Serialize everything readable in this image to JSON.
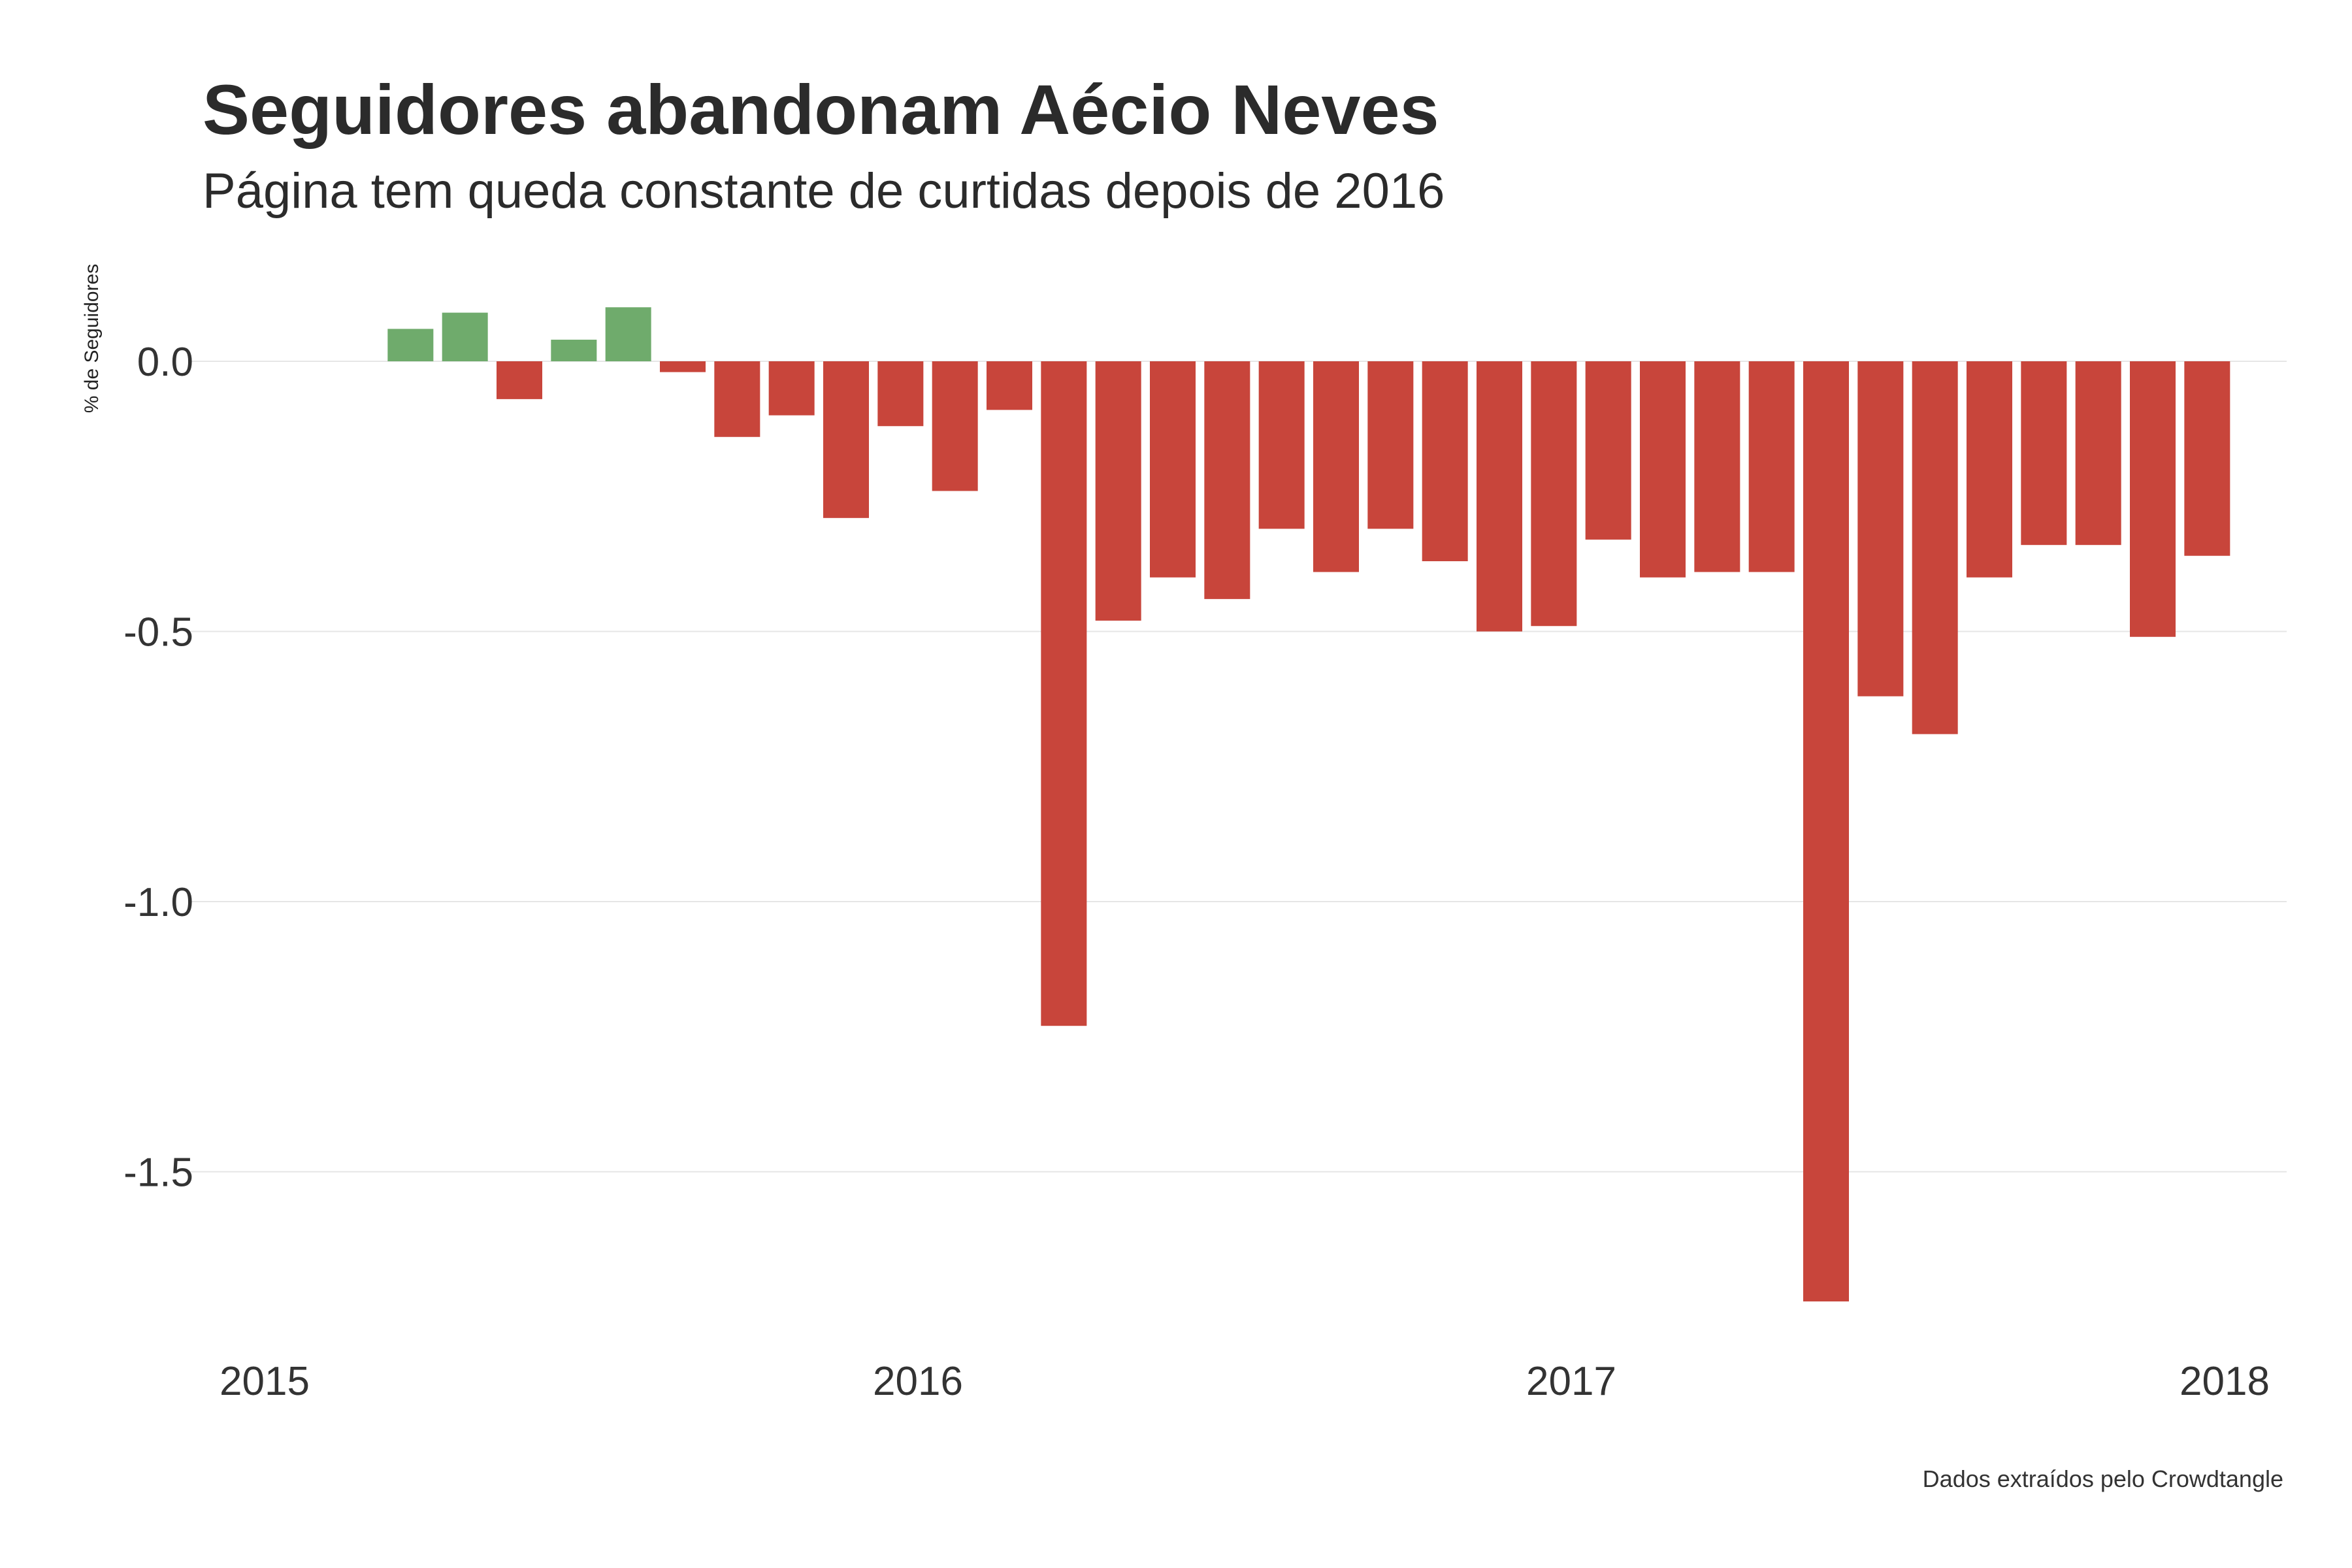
{
  "chart_data": {
    "type": "bar",
    "title": "Seguidores abandonam Aécio Neves",
    "subtitle": "Página tem queda constante de curtidas depois de 2016",
    "ylabel": "% de Seguidores",
    "xlabel": "",
    "caption": "Dados extraídos pelo Crowdtangle",
    "ylim": [
      -1.75,
      0.1
    ],
    "yticks": [
      0.0,
      -0.5,
      -1.0,
      -1.5
    ],
    "ytick_labels": [
      "0.0",
      "-0.5",
      "-1.0",
      "-1.5"
    ],
    "xticks": [
      "2015",
      "2016",
      "2017",
      "2018"
    ],
    "grid": true,
    "legend": "none",
    "colors": {
      "positive": "#6fab6c",
      "negative": "#c8453b"
    },
    "categories": [
      "2015-03",
      "2015-04",
      "2015-05",
      "2015-06",
      "2015-07",
      "2015-08",
      "2015-09",
      "2015-10",
      "2015-11",
      "2015-12",
      "2016-01",
      "2016-02",
      "2016-03",
      "2016-04",
      "2016-05",
      "2016-06",
      "2016-07",
      "2016-08",
      "2016-09",
      "2016-10",
      "2016-11",
      "2016-12",
      "2017-01",
      "2017-02",
      "2017-03",
      "2017-04",
      "2017-05",
      "2017-06",
      "2017-07",
      "2017-08",
      "2017-09",
      "2017-10",
      "2017-11",
      "2017-12"
    ],
    "values": [
      0.06,
      0.09,
      -0.07,
      0.04,
      0.1,
      -0.02,
      -0.14,
      -0.1,
      -0.29,
      -0.12,
      -0.24,
      -0.09,
      -1.23,
      -0.48,
      -0.4,
      -0.44,
      -0.31,
      -0.39,
      -0.31,
      -0.37,
      -0.5,
      -0.49,
      -0.33,
      -0.4,
      -0.39,
      -0.39,
      -1.74,
      -0.62,
      -0.69,
      -0.4,
      -0.34,
      -0.34,
      -0.51,
      -0.36
    ]
  }
}
